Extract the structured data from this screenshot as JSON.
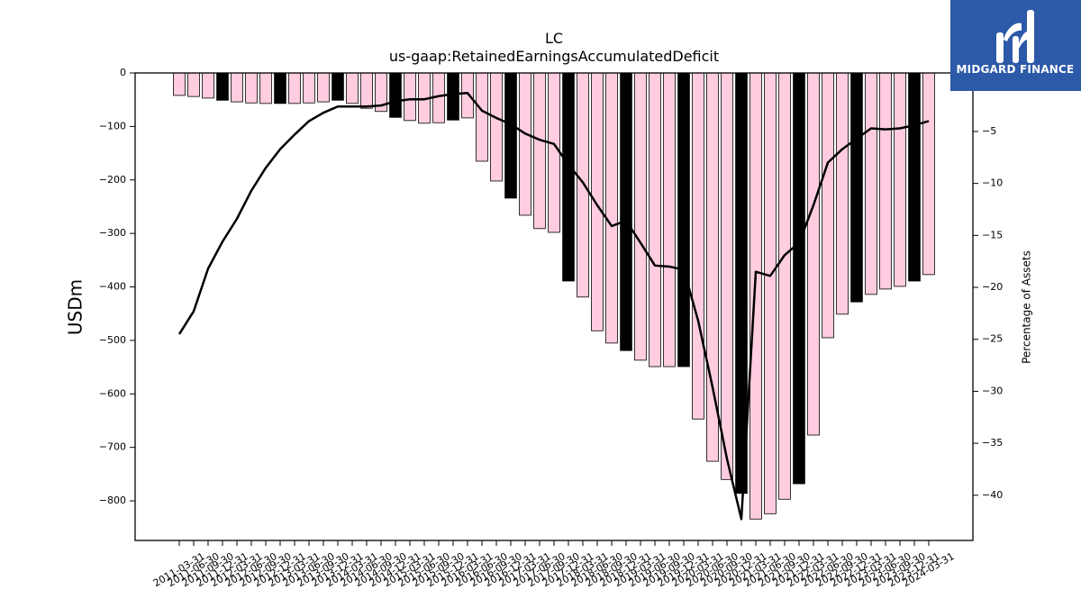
{
  "logo": {
    "text": "MIDGARD FINANCE",
    "bg_color": "#2c59a8",
    "fg_color": "#ffffff"
  },
  "chart_data": {
    "type": "bar",
    "title": "LC",
    "subtitle": "us-gaap:RetainedEarningsAccumulatedDeficit",
    "xlabel": "",
    "ylabel": "USDm",
    "y2label": "Percentage of Assets",
    "categories": [
      "2011-03-31",
      "2011-06-30",
      "2011-09-30",
      "2011-12-31",
      "2012-03-31",
      "2012-06-30",
      "2012-09-30",
      "2012-12-31",
      "2013-03-31",
      "2013-06-30",
      "2013-09-30",
      "2013-12-31",
      "2014-03-31",
      "2014-06-30",
      "2014-09-30",
      "2014-12-31",
      "2015-03-31",
      "2015-06-30",
      "2015-09-30",
      "2015-12-31",
      "2016-03-31",
      "2016-06-30",
      "2016-09-30",
      "2016-12-31",
      "2017-03-31",
      "2017-06-30",
      "2017-09-30",
      "2017-12-31",
      "2018-03-31",
      "2018-06-30",
      "2018-09-30",
      "2018-12-31",
      "2019-03-31",
      "2019-06-30",
      "2019-09-30",
      "2019-12-31",
      "2020-03-31",
      "2020-06-30",
      "2020-09-30",
      "2020-12-31",
      "2021-03-31",
      "2021-06-30",
      "2021-09-30",
      "2021-12-31",
      "2022-03-31",
      "2022-06-30",
      "2022-09-30",
      "2022-12-31",
      "2023-03-31",
      "2023-06-30",
      "2023-09-30",
      "2023-12-31",
      "2024-03-31"
    ],
    "series": [
      {
        "type": "bar",
        "axis": "left",
        "color": "#ffcce0",
        "edge_color": "#000000",
        "highlight_color": "#000000",
        "highlight_categories": [
          "2011-12-31",
          "2012-12-31",
          "2013-12-31",
          "2014-12-31",
          "2015-12-31",
          "2016-12-31",
          "2017-12-31",
          "2018-12-31",
          "2019-12-31",
          "2020-12-31",
          "2021-12-31",
          "2022-12-31",
          "2023-12-31"
        ],
        "values": [
          -42,
          -44,
          -47,
          -51,
          -54,
          -56,
          -57,
          -57,
          -57,
          -56,
          -54,
          -51,
          -57,
          -66,
          -72,
          -83,
          -89,
          -94,
          -93,
          -88,
          -84,
          -165,
          -202,
          -234,
          -266,
          -291,
          -298,
          -389,
          -419,
          -482,
          -505,
          -519,
          -537,
          -549,
          -549,
          -549,
          -647,
          -726,
          -760,
          -786,
          -834,
          -824,
          -797,
          -768,
          -677,
          -495,
          -451,
          -428,
          -414,
          -404,
          -399,
          -389,
          -377
        ]
      },
      {
        "type": "line",
        "axis": "right",
        "color": "#000000",
        "values": [
          -24.5,
          -22.3,
          -18.2,
          -15.6,
          -13.4,
          -10.7,
          -8.5,
          -6.7,
          -5.3,
          -4.0,
          -3.2,
          -2.6,
          -2.6,
          -2.6,
          -2.5,
          -2.1,
          -1.9,
          -1.9,
          -1.6,
          -1.4,
          -1.3,
          -3.0,
          -3.7,
          -4.3,
          -5.2,
          -5.8,
          -6.2,
          -8.2,
          -9.9,
          -12.1,
          -14.1,
          -13.6,
          -15.7,
          -17.9,
          -18.0,
          -18.3,
          -23.2,
          -29.6,
          -36.5,
          -42.3,
          -18.5,
          -18.9,
          -16.9,
          -15.7,
          -12.1,
          -8.0,
          -6.7,
          -5.7,
          -4.7,
          -4.8,
          -4.7,
          -4.4,
          -4.0
        ]
      }
    ],
    "ylim": [
      -874,
      0
    ],
    "y2lim": [
      -44.35,
      0.63
    ],
    "yticks": [
      0,
      -100,
      -200,
      -300,
      -400,
      -500,
      -600,
      -700,
      -800
    ],
    "ytick_labels": [
      "0",
      "−100",
      "−200",
      "−300",
      "−400",
      "−500",
      "−600",
      "−700",
      "−800"
    ],
    "y2ticks": [
      -5,
      -10,
      -15,
      -20,
      -25,
      -30,
      -35,
      -40
    ],
    "y2tick_labels": [
      "−5",
      "−10",
      "−15",
      "−20",
      "−25",
      "−30",
      "−35",
      "−40"
    ],
    "grid": false,
    "legend": "none"
  }
}
